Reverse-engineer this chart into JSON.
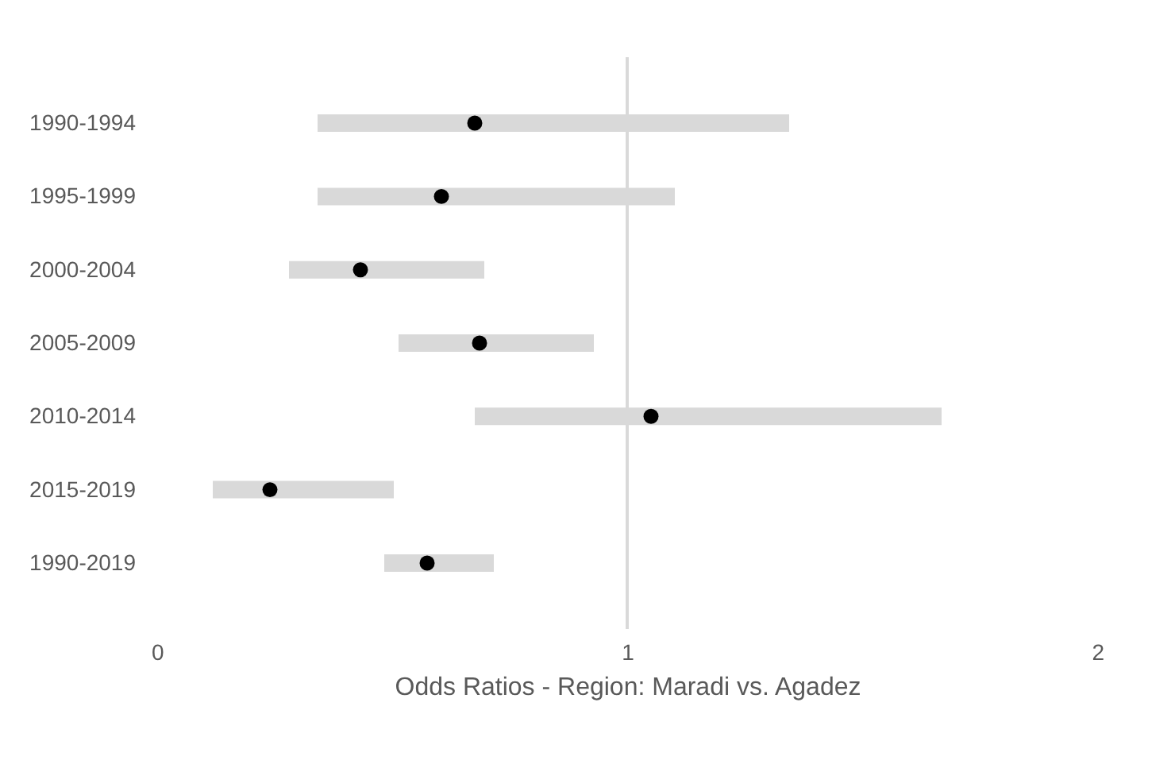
{
  "chart_data": {
    "type": "scatter",
    "orientation": "horizontal",
    "xlabel": "Odds Ratios - Region: Maradi vs. Agadez",
    "categories": [
      "1990-1994",
      "1995-1999",
      "2000-2004",
      "2005-2009",
      "2010-2014",
      "2015-2019",
      "1990-2019"
    ],
    "series": [
      {
        "color": "#000000",
        "values": [
          0.68,
          0.61,
          0.44,
          0.69,
          1.05,
          0.25,
          0.58
        ],
        "errors": [
          [
            0.35,
            1.34
          ],
          [
            0.35,
            1.1
          ],
          [
            0.29,
            0.7
          ],
          [
            0.52,
            0.93
          ],
          [
            0.68,
            1.66
          ],
          [
            0.13,
            0.51
          ],
          [
            0.49,
            0.72
          ]
        ]
      }
    ],
    "xlim": [
      0,
      2
    ],
    "xticks": [
      0,
      1,
      2
    ],
    "ref_lines": [
      {
        "axis": "x",
        "value": 1,
        "color": "#d9d9d9"
      }
    ],
    "grid": false
  }
}
